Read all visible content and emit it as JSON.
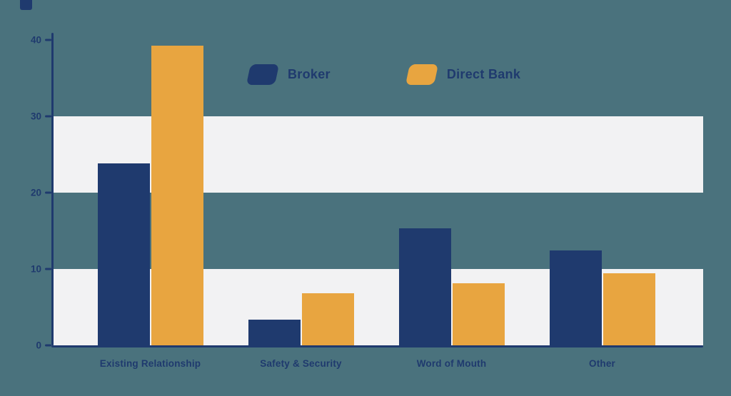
{
  "chart_data": {
    "type": "bar",
    "title": "",
    "xlabel": "",
    "ylabel": "",
    "categories": [
      "Existing Relationship",
      "Safety & Security",
      "Word of Mouth",
      "Other"
    ],
    "series": [
      {
        "name": "Broker",
        "color": "#1f3a6e",
        "values": [
          23.8,
          3.4,
          15.3,
          12.4
        ]
      },
      {
        "name": "Direct Bank",
        "color": "#e8a540",
        "values": [
          39.3,
          6.8,
          8.1,
          9.4
        ]
      }
    ],
    "ylim": [
      0,
      40
    ],
    "yticks": [
      0,
      10,
      20,
      30,
      40
    ],
    "grid_bands": [
      [
        0,
        10
      ],
      [
        20,
        30
      ]
    ],
    "grid": "horizontal-bands",
    "legend_position": "top-center"
  },
  "colors": {
    "background": "#4a727d",
    "band": "#f2f2f3",
    "axis": "#1f3a6e",
    "text": "#1f3a6e",
    "broker": "#1f3a6e",
    "direct_bank": "#e8a540"
  }
}
